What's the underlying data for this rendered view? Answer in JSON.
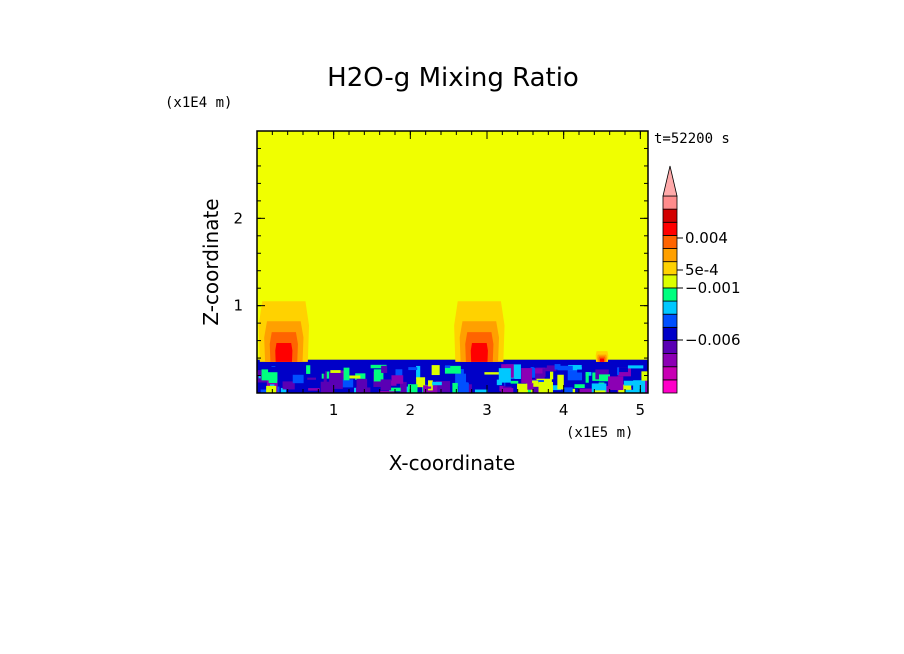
{
  "chart_data": {
    "type": "heatmap",
    "title": "H2O-g Mixing Ratio",
    "xlabel": "X-coordinate",
    "ylabel": "Z-coordinate",
    "x_unit": "(x1E5 m)",
    "y_unit": "(x1E4 m)",
    "time_label": "t=52200 s",
    "xlim": [
      0,
      5.1
    ],
    "ylim": [
      0,
      3.0
    ],
    "x_ticks": [
      1,
      2,
      3,
      4,
      5
    ],
    "y_ticks": [
      1,
      2
    ],
    "colorbar": {
      "colors": [
        "#ff00c8",
        "#c800b4",
        "#8c00b4",
        "#5a00b4",
        "#0000c8",
        "#0050ff",
        "#00c8ff",
        "#00ff7f",
        "#dcff00",
        "#ffd200",
        "#ffa000",
        "#ff6400",
        "#ff0000",
        "#d20000",
        "#ff8c8c"
      ],
      "extend_max_color": "#ffaaaa",
      "labels": [
        {
          "value": "0.004",
          "level": 0.004
        },
        {
          "value": "5e-4",
          "level": 0.0005
        },
        {
          "value": "−0.001",
          "level": -0.001
        },
        {
          "value": "−0.006",
          "level": -0.006
        }
      ]
    },
    "field": {
      "background_color": "#f0ff00",
      "boundary_layer_top": 0.38,
      "plumes": [
        {
          "center_x": 0.35,
          "top_z": 1.05
        },
        {
          "center_x": 2.9,
          "top_z": 1.05
        },
        {
          "center_x": 4.5,
          "top_z": 0.48
        }
      ]
    }
  }
}
